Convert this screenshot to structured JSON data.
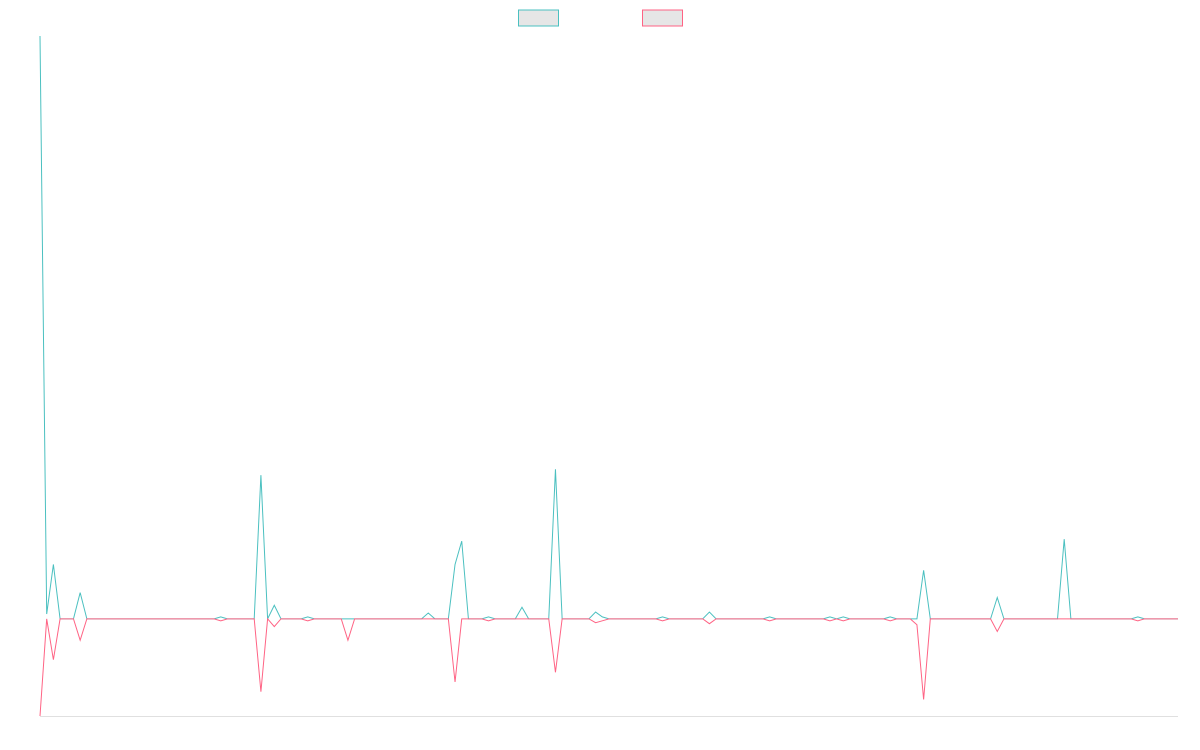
{
  "chart_data": {
    "type": "line",
    "legend": "top",
    "ylim": [
      -100,
      600
    ],
    "series": [
      {
        "color": "#4bc0c0",
        "values": [
          600,
          5,
          56,
          0,
          0,
          0,
          27,
          0,
          0,
          0,
          0,
          0,
          0,
          0,
          0,
          0,
          0,
          0,
          0,
          0,
          0,
          0,
          0,
          0,
          0,
          0,
          0,
          2,
          0,
          0,
          0,
          0,
          0,
          148,
          0,
          14,
          0,
          0,
          0,
          0,
          2,
          0,
          0,
          0,
          0,
          0,
          0,
          0,
          0,
          0,
          0,
          0,
          0,
          0,
          0,
          0,
          0,
          0,
          6,
          0,
          0,
          0,
          56,
          80,
          0,
          0,
          0,
          2,
          0,
          0,
          0,
          0,
          12,
          0,
          0,
          0,
          0,
          154,
          0,
          0,
          0,
          0,
          0,
          7,
          2,
          0,
          0,
          0,
          0,
          0,
          0,
          0,
          0,
          2,
          0,
          0,
          0,
          0,
          0,
          0,
          7,
          0,
          0,
          0,
          0,
          0,
          0,
          0,
          0,
          2,
          0,
          0,
          0,
          0,
          0,
          0,
          0,
          0,
          2,
          0,
          2,
          0,
          0,
          0,
          0,
          0,
          0,
          2,
          0,
          0,
          0,
          0,
          50,
          0,
          0,
          0,
          0,
          0,
          0,
          0,
          0,
          0,
          0,
          22,
          0,
          0,
          0,
          0,
          0,
          0,
          0,
          0,
          0,
          82,
          0,
          0,
          0,
          0,
          0,
          0,
          0,
          0,
          0,
          0,
          2,
          0,
          0,
          0,
          0,
          0,
          0
        ]
      },
      {
        "color": "#ff6384",
        "values": [
          -100,
          0,
          -42,
          0,
          0,
          0,
          -22,
          0,
          0,
          0,
          0,
          0,
          0,
          0,
          0,
          0,
          0,
          0,
          0,
          0,
          0,
          0,
          0,
          0,
          0,
          0,
          0,
          -2,
          0,
          0,
          0,
          0,
          0,
          -75,
          0,
          -8,
          0,
          0,
          0,
          0,
          -2,
          0,
          0,
          0,
          0,
          0,
          -22,
          0,
          0,
          0,
          0,
          0,
          0,
          0,
          0,
          0,
          0,
          0,
          0,
          0,
          0,
          0,
          -65,
          0,
          0,
          0,
          0,
          -2,
          0,
          0,
          0,
          0,
          0,
          0,
          0,
          0,
          0,
          -55,
          0,
          0,
          0,
          0,
          0,
          -4,
          -2,
          0,
          0,
          0,
          0,
          0,
          0,
          0,
          0,
          -2,
          0,
          0,
          0,
          0,
          0,
          0,
          -5,
          0,
          0,
          0,
          0,
          0,
          0,
          0,
          0,
          -2,
          0,
          0,
          0,
          0,
          0,
          0,
          0,
          0,
          -2,
          0,
          -2,
          0,
          0,
          0,
          0,
          0,
          0,
          -2,
          0,
          0,
          0,
          -6,
          -83,
          0,
          0,
          0,
          0,
          0,
          0,
          0,
          0,
          0,
          0,
          -13,
          0,
          0,
          0,
          0,
          0,
          0,
          0,
          0,
          0,
          0,
          0,
          0,
          0,
          0,
          0,
          0,
          0,
          0,
          0,
          0,
          -2,
          0,
          0,
          0,
          0,
          0,
          0
        ]
      }
    ]
  }
}
